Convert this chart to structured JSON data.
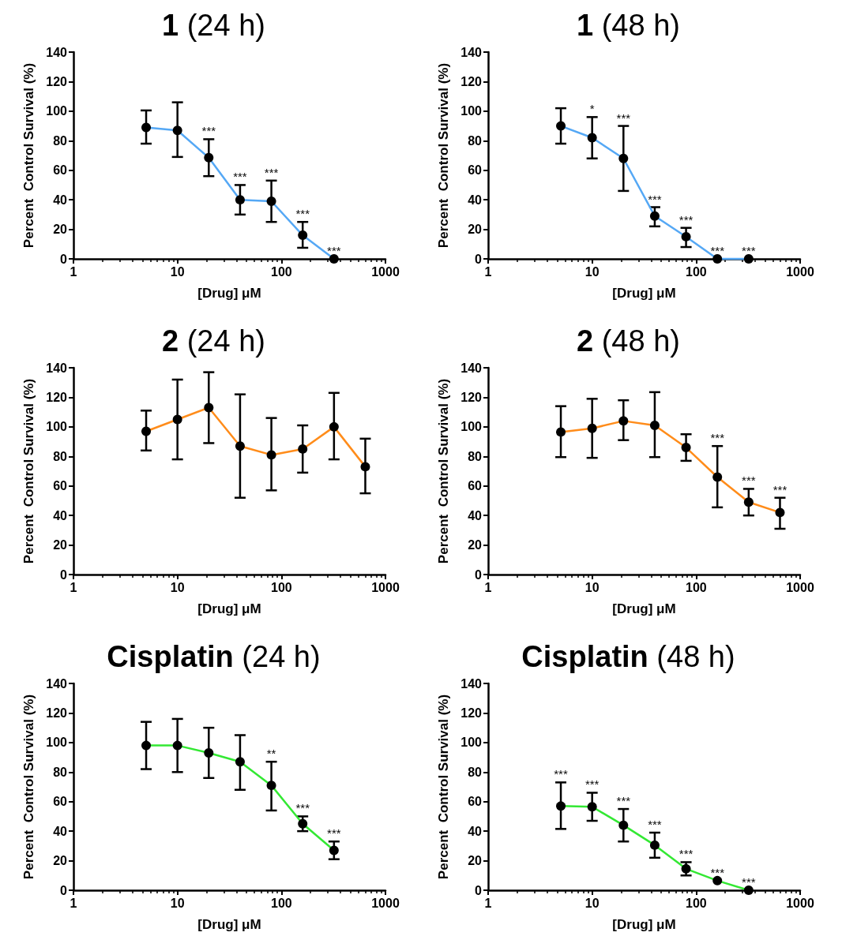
{
  "chart_data": [
    {
      "type": "line",
      "title": "1 (24 h)",
      "xlabel": "[Drug] μM",
      "ylabel": "Percent  Control Survival (%)",
      "log": "x",
      "xlim": [
        1,
        1000
      ],
      "xticks": [
        1,
        10,
        100,
        1000
      ],
      "ylim": [
        0,
        140
      ],
      "yticks": [
        0,
        20,
        40,
        60,
        80,
        100,
        120,
        140
      ],
      "grid": false,
      "marker": "circle",
      "line_style": "solid",
      "x": [
        5,
        10,
        20,
        40,
        80,
        160,
        320
      ],
      "series": [
        {
          "color": "#55a8f5",
          "values": [
            89,
            87,
            68.5,
            40,
            39,
            16,
            0
          ],
          "errors": [
            [
              78,
              100.5
            ],
            [
              69,
              106
            ],
            [
              56,
              81
            ],
            [
              30,
              50
            ],
            [
              25,
              53
            ],
            [
              7.5,
              25
            ],
            null
          ]
        }
      ],
      "annotations": [
        {
          "text": "***",
          "x": 20,
          "y": 81
        },
        {
          "text": "***",
          "x": 40,
          "y": 50
        },
        {
          "text": "***",
          "x": 80,
          "y": 53
        },
        {
          "text": "***",
          "x": 160,
          "y": 25
        },
        {
          "text": "***",
          "x": 320,
          "y": 0
        }
      ]
    },
    {
      "type": "line",
      "title": "1 (48 h)",
      "xlabel": "[Drug] μM",
      "ylabel": "Percent  Control Survival (%)",
      "log": "x",
      "xlim": [
        1,
        1000
      ],
      "xticks": [
        1,
        10,
        100,
        1000
      ],
      "ylim": [
        0,
        140
      ],
      "yticks": [
        0,
        20,
        40,
        60,
        80,
        100,
        120,
        140
      ],
      "grid": false,
      "marker": "circle",
      "line_style": "solid",
      "x": [
        5,
        10,
        20,
        40,
        80,
        160,
        320
      ],
      "series": [
        {
          "color": "#55a8f5",
          "values": [
            90,
            82,
            68,
            29,
            15,
            0,
            0
          ],
          "errors": [
            [
              78,
              102
            ],
            [
              68,
              96
            ],
            [
              46,
              90
            ],
            [
              22,
              35
            ],
            [
              8,
              21
            ],
            null,
            null
          ]
        }
      ],
      "annotations": [
        {
          "text": "*",
          "x": 10,
          "y": 96
        },
        {
          "text": "***",
          "x": 20,
          "y": 90
        },
        {
          "text": "***",
          "x": 40,
          "y": 35
        },
        {
          "text": "***",
          "x": 80,
          "y": 21
        },
        {
          "text": "***",
          "x": 160,
          "y": 0
        },
        {
          "text": "***",
          "x": 320,
          "y": 0
        }
      ]
    },
    {
      "type": "line",
      "title": "2 (24 h)",
      "xlabel": "[Drug] μM",
      "ylabel": "Percent  Control Survival (%)",
      "log": "x",
      "xlim": [
        1,
        1000
      ],
      "xticks": [
        1,
        10,
        100,
        1000
      ],
      "ylim": [
        0,
        140
      ],
      "yticks": [
        0,
        20,
        40,
        60,
        80,
        100,
        120,
        140
      ],
      "grid": false,
      "marker": "circle",
      "line_style": "solid",
      "x": [
        5,
        10,
        20,
        40,
        80,
        160,
        320,
        640
      ],
      "series": [
        {
          "color": "#ff8c1a",
          "values": [
            97,
            105,
            113,
            87,
            81,
            85,
            100,
            73
          ],
          "errors": [
            [
              84,
              111
            ],
            [
              78,
              132
            ],
            [
              89,
              137
            ],
            [
              52,
              122
            ],
            [
              57,
              106
            ],
            [
              69,
              101
            ],
            [
              78,
              123
            ],
            [
              55,
              92
            ]
          ]
        }
      ]
    },
    {
      "type": "line",
      "title": "2 (48 h)",
      "xlabel": "[Drug] μM",
      "ylabel": "Percent  Control Survival (%)",
      "log": "x",
      "xlim": [
        1,
        1000
      ],
      "xticks": [
        1,
        10,
        100,
        1000
      ],
      "ylim": [
        0,
        140
      ],
      "yticks": [
        0,
        20,
        40,
        60,
        80,
        100,
        120,
        140
      ],
      "grid": false,
      "marker": "circle",
      "line_style": "solid",
      "x": [
        5,
        10,
        20,
        40,
        80,
        160,
        320,
        640
      ],
      "series": [
        {
          "color": "#ff8c1a",
          "values": [
            96.5,
            99,
            104,
            101,
            86,
            66,
            49,
            42
          ],
          "errors": [
            [
              79.5,
              114
            ],
            [
              79,
              119
            ],
            [
              91,
              118
            ],
            [
              79.5,
              123.5
            ],
            [
              77,
              95
            ],
            [
              45.5,
              87
            ],
            [
              40,
              58
            ],
            [
              31,
              52
            ]
          ]
        }
      ],
      "annotations": [
        {
          "text": "***",
          "x": 160,
          "y": 87
        },
        {
          "text": "***",
          "x": 320,
          "y": 58
        },
        {
          "text": "***",
          "x": 640,
          "y": 52
        }
      ]
    },
    {
      "type": "line",
      "title": "Cisplatin (24 h)",
      "xlabel": "[Drug] μM",
      "ylabel": "Percent  Control Survival (%)",
      "log": "x",
      "xlim": [
        1,
        1000
      ],
      "xticks": [
        1,
        10,
        100,
        1000
      ],
      "ylim": [
        0,
        140
      ],
      "yticks": [
        0,
        20,
        40,
        60,
        80,
        100,
        120,
        140
      ],
      "grid": false,
      "marker": "circle",
      "line_style": "solid",
      "x": [
        5,
        10,
        20,
        40,
        80,
        160,
        320
      ],
      "series": [
        {
          "color": "#33e833",
          "values": [
            98,
            98,
            93,
            87,
            71,
            45,
            27
          ],
          "errors": [
            [
              82,
              114
            ],
            [
              80,
              116
            ],
            [
              76,
              110
            ],
            [
              68,
              105
            ],
            [
              54,
              87
            ],
            [
              40,
              50
            ],
            [
              21,
              33
            ]
          ]
        }
      ],
      "annotations": [
        {
          "text": "**",
          "x": 80,
          "y": 87
        },
        {
          "text": "***",
          "x": 160,
          "y": 50
        },
        {
          "text": "***",
          "x": 320,
          "y": 33
        }
      ]
    },
    {
      "type": "line",
      "title": "Cisplatin (48 h)",
      "xlabel": "[Drug] μM",
      "ylabel": "Percent  Control Survival (%)",
      "log": "x",
      "xlim": [
        1,
        1000
      ],
      "xticks": [
        1,
        10,
        100,
        1000
      ],
      "ylim": [
        0,
        140
      ],
      "yticks": [
        0,
        20,
        40,
        60,
        80,
        100,
        120,
        140
      ],
      "grid": false,
      "marker": "circle",
      "line_style": "solid",
      "x": [
        5,
        10,
        20,
        40,
        80,
        160,
        320
      ],
      "series": [
        {
          "color": "#33e833",
          "values": [
            57,
            56.5,
            44,
            30.5,
            14.5,
            6.5,
            0
          ],
          "errors": [
            [
              41.5,
              73
            ],
            [
              47,
              66
            ],
            [
              33,
              55
            ],
            [
              22,
              39
            ],
            [
              10,
              19
            ],
            null,
            null
          ]
        }
      ],
      "annotations": [
        {
          "text": "***",
          "x": 5,
          "y": 73
        },
        {
          "text": "***",
          "x": 10,
          "y": 66
        },
        {
          "text": "***",
          "x": 20,
          "y": 55
        },
        {
          "text": "***",
          "x": 40,
          "y": 39
        },
        {
          "text": "***",
          "x": 80,
          "y": 19
        },
        {
          "text": "***",
          "x": 160,
          "y": 6.5
        },
        {
          "text": "***",
          "x": 320,
          "y": 0
        }
      ]
    }
  ]
}
